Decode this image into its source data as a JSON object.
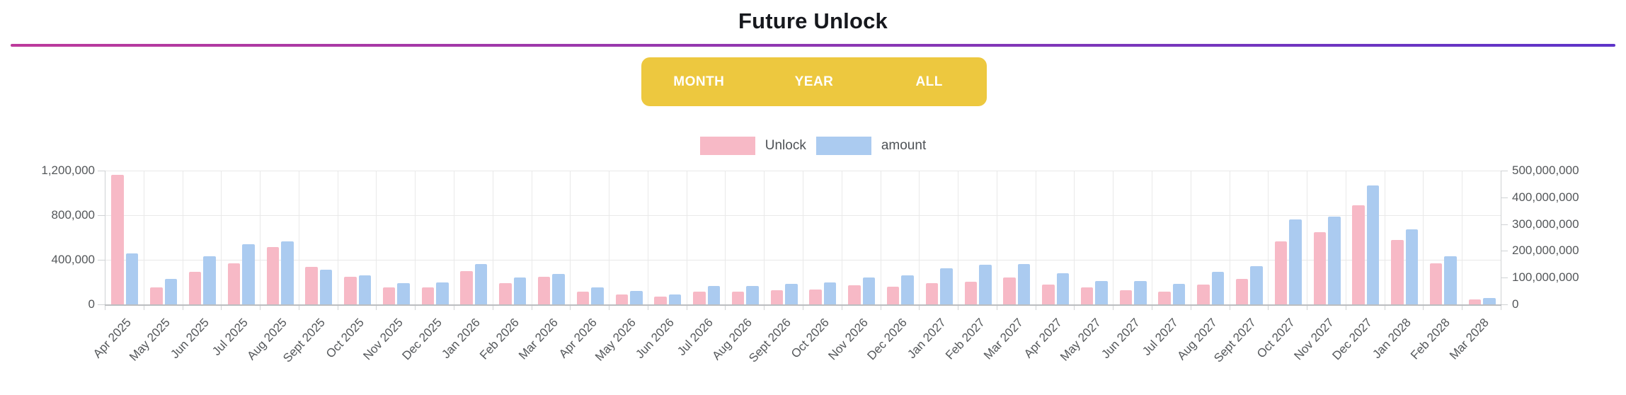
{
  "title": "Future Unlock",
  "accent_line": {
    "color_left": "#bd3a9c",
    "color_right": "#5e34c9"
  },
  "range_buttons": {
    "background": "#edc83f",
    "items": [
      {
        "label": "MONTH"
      },
      {
        "label": "YEAR"
      },
      {
        "label": "ALL"
      }
    ]
  },
  "chart_data": {
    "type": "bar",
    "title": "Future Unlock",
    "legend_position": "top",
    "grid": true,
    "categories": [
      "Apr 2025",
      "May 2025",
      "Jun 2025",
      "Jul 2025",
      "Aug 2025",
      "Sept 2025",
      "Oct 2025",
      "Nov 2025",
      "Dec 2025",
      "Jan 2026",
      "Feb 2026",
      "Mar 2026",
      "Apr 2026",
      "May 2026",
      "Jun 2026",
      "Jul 2026",
      "Aug 2026",
      "Sept 2026",
      "Oct 2026",
      "Nov 2026",
      "Dec 2026",
      "Jan 2027",
      "Feb 2027",
      "Mar 2027",
      "Apr 2027",
      "May 2027",
      "Jun 2027",
      "Jul 2027",
      "Aug 2027",
      "Sept 2027",
      "Oct 2027",
      "Nov 2027",
      "Dec 2027",
      "Jan 2028",
      "Feb 2028",
      "Mar 2028"
    ],
    "series": [
      {
        "name": "Unlock",
        "axis": "left",
        "color": "#f7b9c6",
        "values": [
          1160000,
          150000,
          290000,
          370000,
          515000,
          335000,
          245000,
          150000,
          150000,
          300000,
          190000,
          250000,
          115000,
          90000,
          68000,
          115000,
          115000,
          125000,
          135000,
          170000,
          160000,
          190000,
          205000,
          240000,
          180000,
          150000,
          125000,
          115000,
          175000,
          230000,
          565000,
          650000,
          890000,
          575000,
          370000,
          45000
        ]
      },
      {
        "name": "amount",
        "axis": "right",
        "color": "#abcbf0",
        "values": [
          190000000,
          95000000,
          180000000,
          225000000,
          235000000,
          130000000,
          108000000,
          80000000,
          83000000,
          150000000,
          100000000,
          115000000,
          64000000,
          50000000,
          36000000,
          70000000,
          70000000,
          78000000,
          83000000,
          100000000,
          108000000,
          135000000,
          148000000,
          150000000,
          116000000,
          86000000,
          86000000,
          78000000,
          121000000,
          142000000,
          317000000,
          328000000,
          445000000,
          280000000,
          180000000,
          24000000
        ]
      }
    ],
    "left_axis": {
      "max": 1200000,
      "min": 0,
      "ticks": [
        "1,200,000",
        "800,000",
        "400,000",
        "0"
      ]
    },
    "right_axis": {
      "max": 500000000,
      "min": 0,
      "ticks": [
        "500,000,000",
        "400,000,000",
        "300,000,000",
        "200,000,000",
        "100,000,000",
        "0"
      ]
    }
  }
}
